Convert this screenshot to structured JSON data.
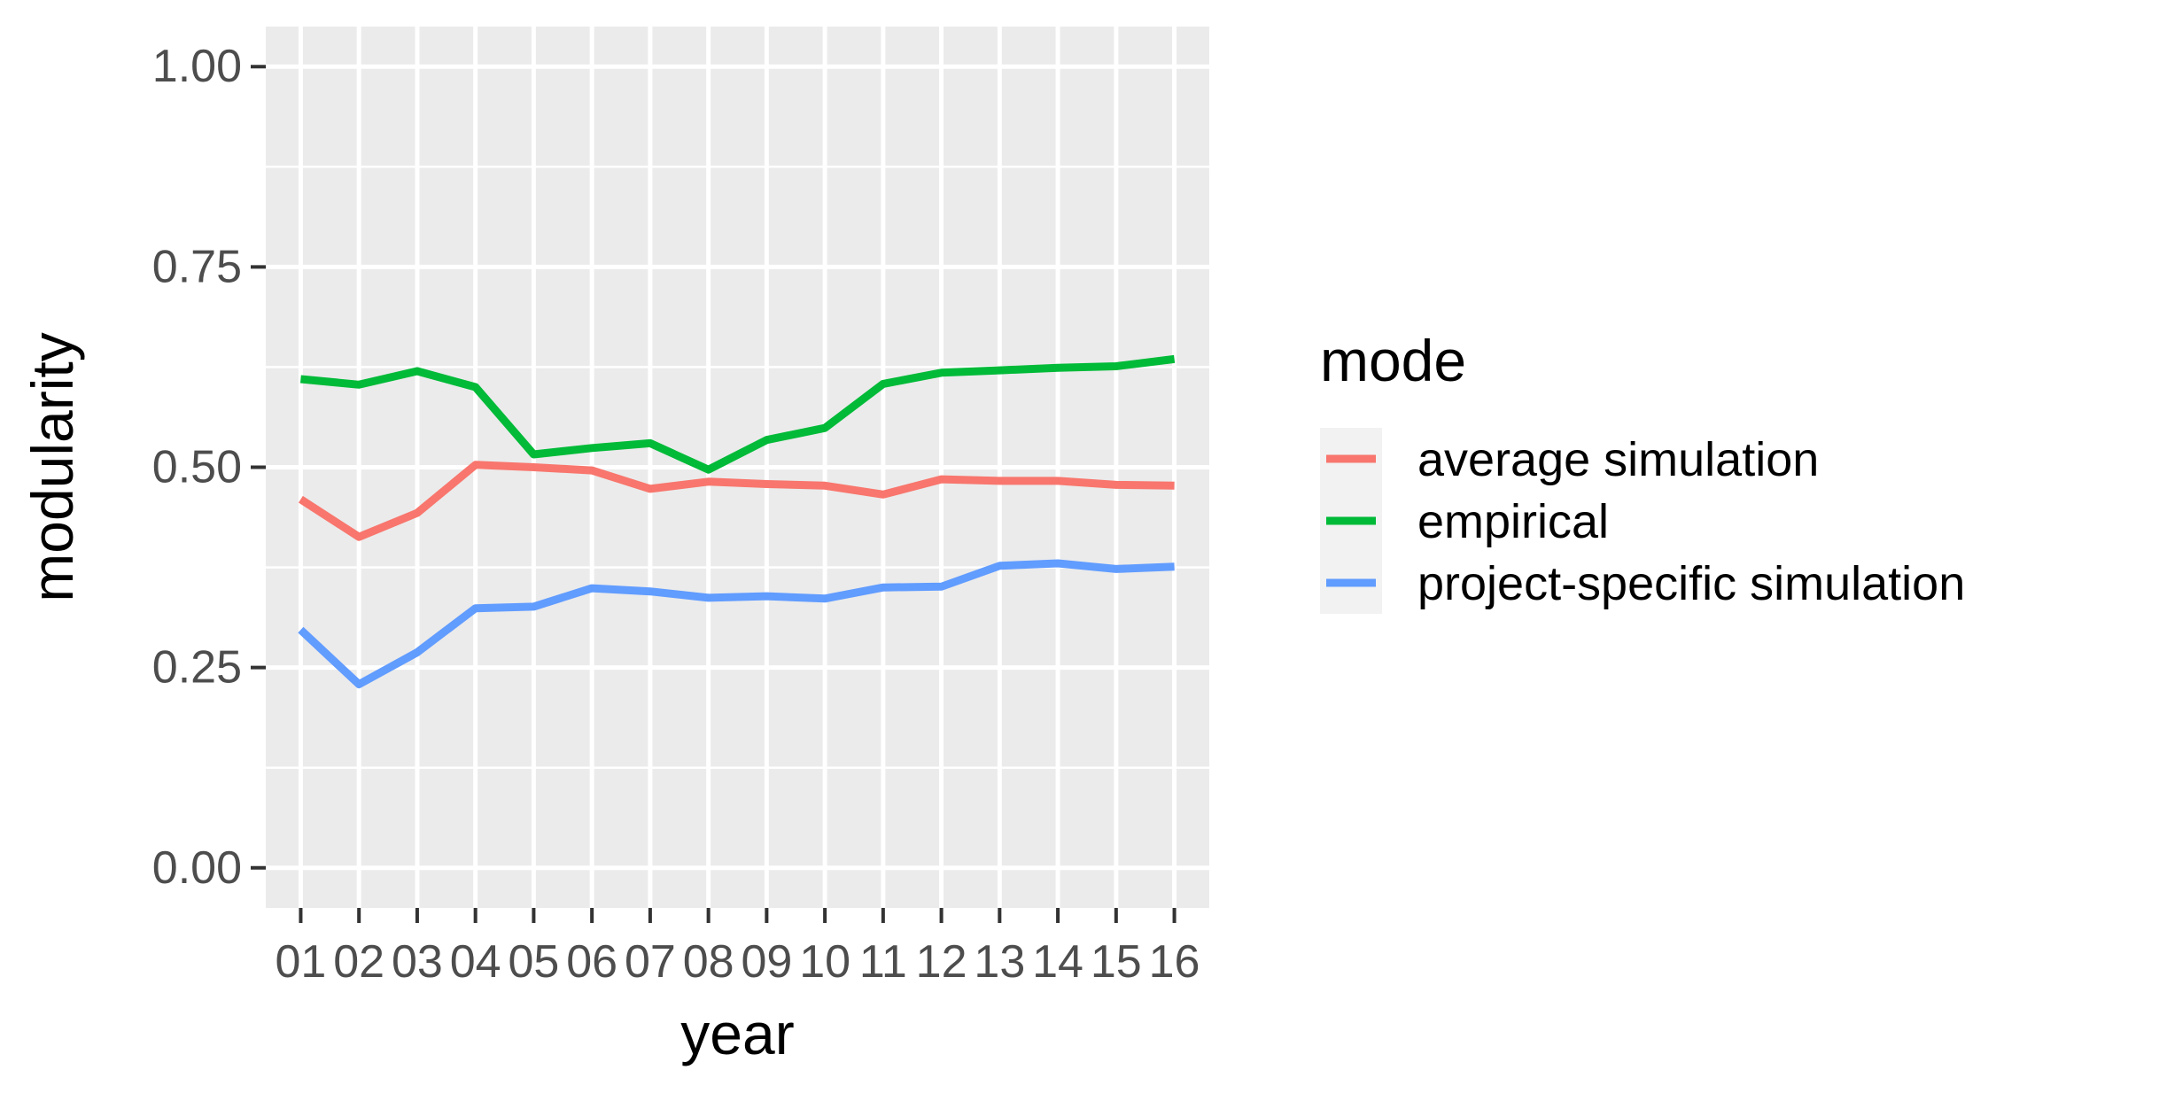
{
  "chart_data": {
    "type": "line",
    "xlabel": "year",
    "ylabel": "modularity",
    "x": [
      "01",
      "02",
      "03",
      "04",
      "05",
      "06",
      "07",
      "08",
      "09",
      "10",
      "11",
      "12",
      "13",
      "14",
      "15",
      "16"
    ],
    "x_tick_labels": [
      "01",
      "02",
      "03",
      "04",
      "05",
      "06",
      "07",
      "08",
      "09",
      "10",
      "11",
      "12",
      "13",
      "14",
      "15",
      "16"
    ],
    "ylim": [
      -0.05,
      1.05
    ],
    "y_ticks": [
      0.0,
      0.25,
      0.5,
      0.75,
      1.0
    ],
    "y_tick_labels": [
      "0.00",
      "0.25",
      "0.50",
      "0.75",
      "1.00"
    ],
    "grid": true,
    "legend": {
      "title": "mode",
      "position": "right"
    },
    "series": [
      {
        "name": "average simulation",
        "color": "#F8766D",
        "values": [
          0.46,
          0.413,
          0.443,
          0.503,
          0.5,
          0.496,
          0.473,
          0.482,
          0.479,
          0.477,
          0.466,
          0.485,
          0.483,
          0.483,
          0.478,
          0.477
        ]
      },
      {
        "name": "empirical",
        "color": "#00BA38",
        "values": [
          0.61,
          0.603,
          0.62,
          0.6,
          0.516,
          0.524,
          0.53,
          0.497,
          0.534,
          0.549,
          0.604,
          0.618,
          0.621,
          0.624,
          0.626,
          0.635
        ]
      },
      {
        "name": "project-specific simulation",
        "color": "#619CFF",
        "values": [
          0.297,
          0.229,
          0.269,
          0.324,
          0.326,
          0.349,
          0.345,
          0.337,
          0.339,
          0.336,
          0.35,
          0.351,
          0.377,
          0.38,
          0.373,
          0.376
        ]
      }
    ]
  },
  "colors": {
    "panel_background": "#EBEBEB",
    "grid_major": "#FFFFFF",
    "axis_text": "#4D4D4D",
    "tick_mark": "#333333",
    "legend_key_background": "#F2F2F2"
  }
}
